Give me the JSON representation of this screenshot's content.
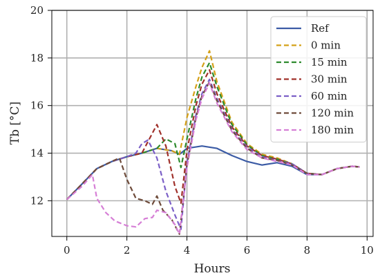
{
  "chart_data": {
    "type": "line",
    "xlabel": "Hours",
    "ylabel": "Tb [°C]",
    "xlim": [
      -0.5,
      10.2
    ],
    "ylim": [
      10.5,
      20
    ],
    "xticks": [
      0,
      2,
      4,
      6,
      8,
      10
    ],
    "yticks": [
      12,
      14,
      16,
      18,
      20
    ],
    "grid": true,
    "legend_position": "top-right",
    "series": [
      {
        "name": "Ref",
        "color": "#3b5ba5",
        "style": "solid",
        "points": [
          [
            0,
            12.05
          ],
          [
            0.5,
            12.7
          ],
          [
            1.0,
            13.35
          ],
          [
            1.5,
            13.65
          ],
          [
            2.0,
            13.85
          ],
          [
            2.5,
            14.0
          ],
          [
            3.0,
            14.2
          ],
          [
            3.5,
            14.1
          ],
          [
            3.75,
            13.95
          ],
          [
            4.0,
            14.2
          ],
          [
            4.5,
            14.3
          ],
          [
            5.0,
            14.2
          ],
          [
            5.5,
            13.9
          ],
          [
            6.0,
            13.65
          ],
          [
            6.5,
            13.5
          ],
          [
            7.0,
            13.6
          ],
          [
            7.5,
            13.45
          ],
          [
            8.0,
            13.1
          ],
          [
            8.5,
            13.1
          ],
          [
            9.0,
            13.35
          ],
          [
            9.5,
            13.45
          ],
          [
            9.75,
            13.42
          ]
        ]
      },
      {
        "name": "0 min",
        "color": "#d4a017",
        "style": "dashed",
        "points": [
          [
            0,
            12.05
          ],
          [
            0.5,
            12.7
          ],
          [
            1.0,
            13.35
          ],
          [
            1.5,
            13.65
          ],
          [
            2.0,
            13.85
          ],
          [
            2.5,
            14.0
          ],
          [
            3.0,
            14.2
          ],
          [
            3.5,
            14.1
          ],
          [
            3.75,
            13.95
          ],
          [
            4.0,
            15.5
          ],
          [
            4.3,
            16.8
          ],
          [
            4.5,
            17.6
          ],
          [
            4.75,
            18.3
          ],
          [
            5.0,
            17.0
          ],
          [
            5.5,
            15.3
          ],
          [
            6.0,
            14.4
          ],
          [
            6.5,
            13.95
          ],
          [
            7.0,
            13.8
          ],
          [
            7.5,
            13.55
          ],
          [
            8.0,
            13.15
          ],
          [
            8.5,
            13.1
          ],
          [
            9.0,
            13.35
          ],
          [
            9.5,
            13.45
          ],
          [
            9.75,
            13.42
          ]
        ]
      },
      {
        "name": "15 min",
        "color": "#2e8b2e",
        "style": "dashed",
        "points": [
          [
            0,
            12.05
          ],
          [
            0.5,
            12.7
          ],
          [
            1.0,
            13.35
          ],
          [
            1.5,
            13.65
          ],
          [
            2.0,
            13.85
          ],
          [
            2.5,
            14.0
          ],
          [
            3.0,
            14.2
          ],
          [
            3.3,
            14.6
          ],
          [
            3.6,
            14.4
          ],
          [
            3.8,
            13.4
          ],
          [
            4.0,
            14.6
          ],
          [
            4.3,
            16.3
          ],
          [
            4.5,
            17.2
          ],
          [
            4.75,
            17.8
          ],
          [
            5.0,
            16.8
          ],
          [
            5.5,
            15.2
          ],
          [
            6.0,
            14.35
          ],
          [
            6.5,
            13.9
          ],
          [
            7.0,
            13.75
          ],
          [
            7.5,
            13.55
          ],
          [
            8.0,
            13.15
          ],
          [
            8.5,
            13.1
          ],
          [
            9.0,
            13.35
          ],
          [
            9.5,
            13.45
          ],
          [
            9.75,
            13.42
          ]
        ]
      },
      {
        "name": "30 min",
        "color": "#a0302a",
        "style": "dashed",
        "points": [
          [
            0,
            12.05
          ],
          [
            0.5,
            12.7
          ],
          [
            1.0,
            13.35
          ],
          [
            1.5,
            13.65
          ],
          [
            2.0,
            13.85
          ],
          [
            2.5,
            14.0
          ],
          [
            3.0,
            15.2
          ],
          [
            3.3,
            14.3
          ],
          [
            3.6,
            12.6
          ],
          [
            3.8,
            11.9
          ],
          [
            4.0,
            14.1
          ],
          [
            4.3,
            16.0
          ],
          [
            4.5,
            16.9
          ],
          [
            4.75,
            17.5
          ],
          [
            5.0,
            16.5
          ],
          [
            5.5,
            15.1
          ],
          [
            6.0,
            14.3
          ],
          [
            6.5,
            13.9
          ],
          [
            7.0,
            13.75
          ],
          [
            7.5,
            13.55
          ],
          [
            8.0,
            13.15
          ],
          [
            8.5,
            13.1
          ],
          [
            9.0,
            13.35
          ],
          [
            9.5,
            13.45
          ],
          [
            9.75,
            13.42
          ]
        ]
      },
      {
        "name": "60 min",
        "color": "#7b5fc7",
        "style": "dashed",
        "points": [
          [
            0,
            12.05
          ],
          [
            0.5,
            12.7
          ],
          [
            1.0,
            13.35
          ],
          [
            1.5,
            13.65
          ],
          [
            2.0,
            13.85
          ],
          [
            2.3,
            14.0
          ],
          [
            2.5,
            14.4
          ],
          [
            2.7,
            14.55
          ],
          [
            3.0,
            13.8
          ],
          [
            3.3,
            12.4
          ],
          [
            3.6,
            11.4
          ],
          [
            3.8,
            10.8
          ],
          [
            4.0,
            13.6
          ],
          [
            4.3,
            15.6
          ],
          [
            4.5,
            16.5
          ],
          [
            4.75,
            17.1
          ],
          [
            5.0,
            16.3
          ],
          [
            5.5,
            15.0
          ],
          [
            6.0,
            14.25
          ],
          [
            6.5,
            13.85
          ],
          [
            7.0,
            13.7
          ],
          [
            7.5,
            13.55
          ],
          [
            8.0,
            13.15
          ],
          [
            8.5,
            13.1
          ],
          [
            9.0,
            13.35
          ],
          [
            9.5,
            13.45
          ],
          [
            9.75,
            13.42
          ]
        ]
      },
      {
        "name": "120 min",
        "color": "#6e4b3a",
        "style": "dashed",
        "points": [
          [
            0,
            12.05
          ],
          [
            0.5,
            12.7
          ],
          [
            1.0,
            13.35
          ],
          [
            1.5,
            13.65
          ],
          [
            1.75,
            13.8
          ],
          [
            2.0,
            12.9
          ],
          [
            2.3,
            12.1
          ],
          [
            2.6,
            12.0
          ],
          [
            2.85,
            11.85
          ],
          [
            3.0,
            12.2
          ],
          [
            3.2,
            11.6
          ],
          [
            3.5,
            11.2
          ],
          [
            3.75,
            10.6
          ],
          [
            4.0,
            13.5
          ],
          [
            4.3,
            15.5
          ],
          [
            4.5,
            16.4
          ],
          [
            4.75,
            17.0
          ],
          [
            5.0,
            16.2
          ],
          [
            5.5,
            14.95
          ],
          [
            6.0,
            14.2
          ],
          [
            6.5,
            13.8
          ],
          [
            7.0,
            13.7
          ],
          [
            7.5,
            13.5
          ],
          [
            8.0,
            13.15
          ],
          [
            8.5,
            13.1
          ],
          [
            9.0,
            13.35
          ],
          [
            9.5,
            13.45
          ],
          [
            9.75,
            13.42
          ]
        ]
      },
      {
        "name": "180 min",
        "color": "#d67fd6",
        "style": "dashed",
        "points": [
          [
            0,
            12.05
          ],
          [
            0.5,
            12.6
          ],
          [
            0.85,
            13.1
          ],
          [
            1.0,
            12.1
          ],
          [
            1.3,
            11.5
          ],
          [
            1.6,
            11.15
          ],
          [
            2.0,
            10.95
          ],
          [
            2.3,
            10.9
          ],
          [
            2.6,
            11.25
          ],
          [
            2.85,
            11.3
          ],
          [
            3.0,
            11.6
          ],
          [
            3.3,
            11.5
          ],
          [
            3.6,
            11.0
          ],
          [
            3.75,
            10.6
          ],
          [
            4.0,
            13.4
          ],
          [
            4.3,
            15.4
          ],
          [
            4.5,
            16.3
          ],
          [
            4.75,
            16.95
          ],
          [
            5.0,
            16.1
          ],
          [
            5.5,
            14.9
          ],
          [
            6.0,
            14.15
          ],
          [
            6.5,
            13.8
          ],
          [
            7.0,
            13.65
          ],
          [
            7.5,
            13.5
          ],
          [
            8.0,
            13.1
          ],
          [
            8.5,
            13.1
          ],
          [
            9.0,
            13.35
          ],
          [
            9.5,
            13.45
          ],
          [
            9.75,
            13.42
          ]
        ]
      }
    ]
  }
}
